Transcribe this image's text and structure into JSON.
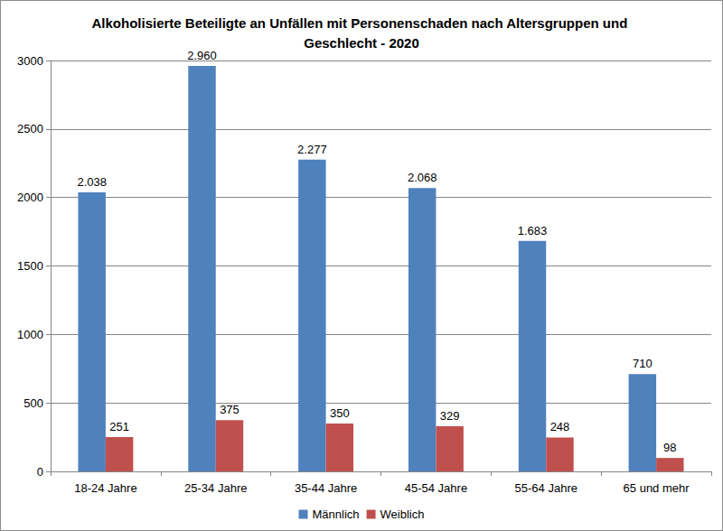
{
  "chart_data": {
    "type": "bar",
    "title": "Alkoholisierte Beteiligte an Unfällen mit Personenschaden nach Altersgruppen und Geschlecht - 2020",
    "categories": [
      "18-24 Jahre",
      "25-34 Jahre",
      "35-44 Jahre",
      "45-54 Jahre",
      "55-64 Jahre",
      "65 und mehr"
    ],
    "series": [
      {
        "name": "Männlich",
        "color": "#4f81bd",
        "values": [
          2038,
          2960,
          2277,
          2068,
          1683,
          710
        ],
        "value_labels": [
          "2.038",
          "2.960",
          "2.277",
          "2.068",
          "1.683",
          "710"
        ]
      },
      {
        "name": "Weiblich",
        "color": "#c0504d",
        "values": [
          251,
          375,
          350,
          329,
          248,
          98
        ],
        "value_labels": [
          "251",
          "375",
          "350",
          "329",
          "248",
          "98"
        ]
      }
    ],
    "ylim": [
      0,
      3000
    ],
    "yticks": [
      0,
      500,
      1000,
      1500,
      2000,
      2500,
      3000
    ],
    "grid": true,
    "legend": "bottom",
    "data_labels": true
  }
}
